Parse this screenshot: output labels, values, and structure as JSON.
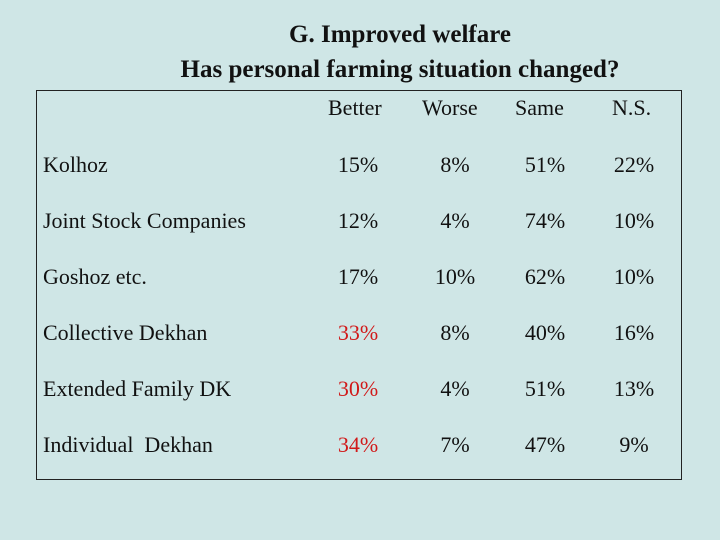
{
  "title_line1": "G. Improved welfare",
  "title_line2": "Has personal farming situation changed?",
  "columns": [
    "Better",
    "Worse",
    "Same",
    "N.S."
  ],
  "highlight_color": "#d11a1a",
  "rows": [
    {
      "label": "Kolhoz",
      "values": [
        "15%",
        "8%",
        "51%",
        "22%"
      ],
      "better_highlight": false
    },
    {
      "label": "Joint Stock Companies",
      "values": [
        "12%",
        "4%",
        "74%",
        "10%"
      ],
      "better_highlight": false
    },
    {
      "label": "Goshoz etc.",
      "values": [
        "17%",
        "10%",
        "62%",
        "10%"
      ],
      "better_highlight": false
    },
    {
      "label": "Collective Dekhan",
      "values": [
        "33%",
        "8%",
        "40%",
        "16%"
      ],
      "better_highlight": true
    },
    {
      "label": "Extended Family DK",
      "values": [
        "30%",
        "4%",
        "51%",
        "13%"
      ],
      "better_highlight": true
    },
    {
      "label": "Individual  Dekhan",
      "values": [
        "34%",
        "7%",
        "47%",
        "9%"
      ],
      "better_highlight": true
    }
  ]
}
